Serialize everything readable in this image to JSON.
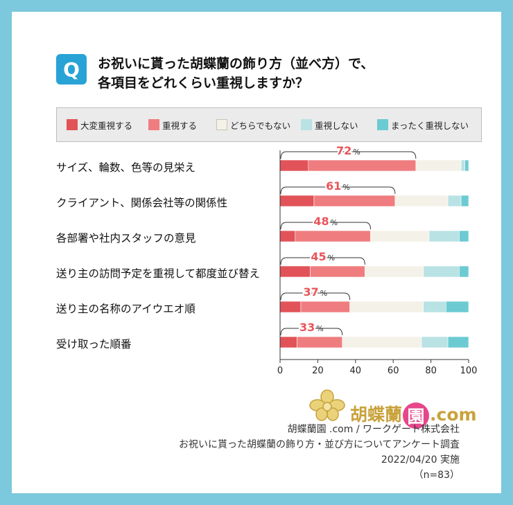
{
  "question": {
    "badge": "Q",
    "line1": "お祝いに貰った胡蝶蘭の飾り方（並べ方）で、",
    "line2": "各項目をどれくらい重視しますか？"
  },
  "colors": {
    "background_frame": "#7cc8dc",
    "badge": "#29a3d6",
    "highlight_text": "#e8555a",
    "logo": "#c9a23c"
  },
  "chart_data": {
    "type": "bar",
    "orientation": "horizontal",
    "stacked": true,
    "categories": [
      "サイズ、輪数、色等の見栄え",
      "クライアント、関係会社等の関係性",
      "各部署や社内スタッフの意見",
      "送り主の訪問予定を重視して都度並び替え",
      "送り主の名称のアイウエオ順",
      "受け取った順番"
    ],
    "series": [
      {
        "name": "大変重視する",
        "color": "#e15358",
        "values": [
          15,
          18,
          8,
          16,
          11,
          9
        ]
      },
      {
        "name": "重視する",
        "color": "#ef7d7f",
        "values": [
          57,
          43,
          40,
          29,
          26,
          24
        ]
      },
      {
        "name": "どちらでもない",
        "color": "#f4f1e8",
        "values": [
          24,
          28,
          31,
          31,
          39,
          42
        ]
      },
      {
        "name": "重視しない",
        "color": "#b9e2e4",
        "values": [
          2,
          7,
          16,
          19,
          12,
          14
        ]
      },
      {
        "name": "まったく重視しない",
        "color": "#6ccbd2",
        "values": [
          2,
          4,
          5,
          5,
          12,
          11
        ]
      }
    ],
    "highlight_totals": [
      72,
      61,
      48,
      45,
      37,
      33
    ],
    "highlight_unit": "%",
    "xlim": [
      0,
      100
    ],
    "xticks": [
      0,
      20,
      40,
      60,
      80,
      100
    ],
    "legend_position": "top",
    "grid": false
  },
  "logo": {
    "text": "胡蝶蘭",
    "circle_char": "園",
    "suffix": ".com"
  },
  "credits": {
    "line1": "胡蝶蘭園 .com / ワークゲート株式会社",
    "line2": "お祝いに貰った胡蝶蘭の飾り方・並び方についてアンケート調査",
    "line3": "2022/04/20 実施",
    "line4": "（n=83）"
  }
}
